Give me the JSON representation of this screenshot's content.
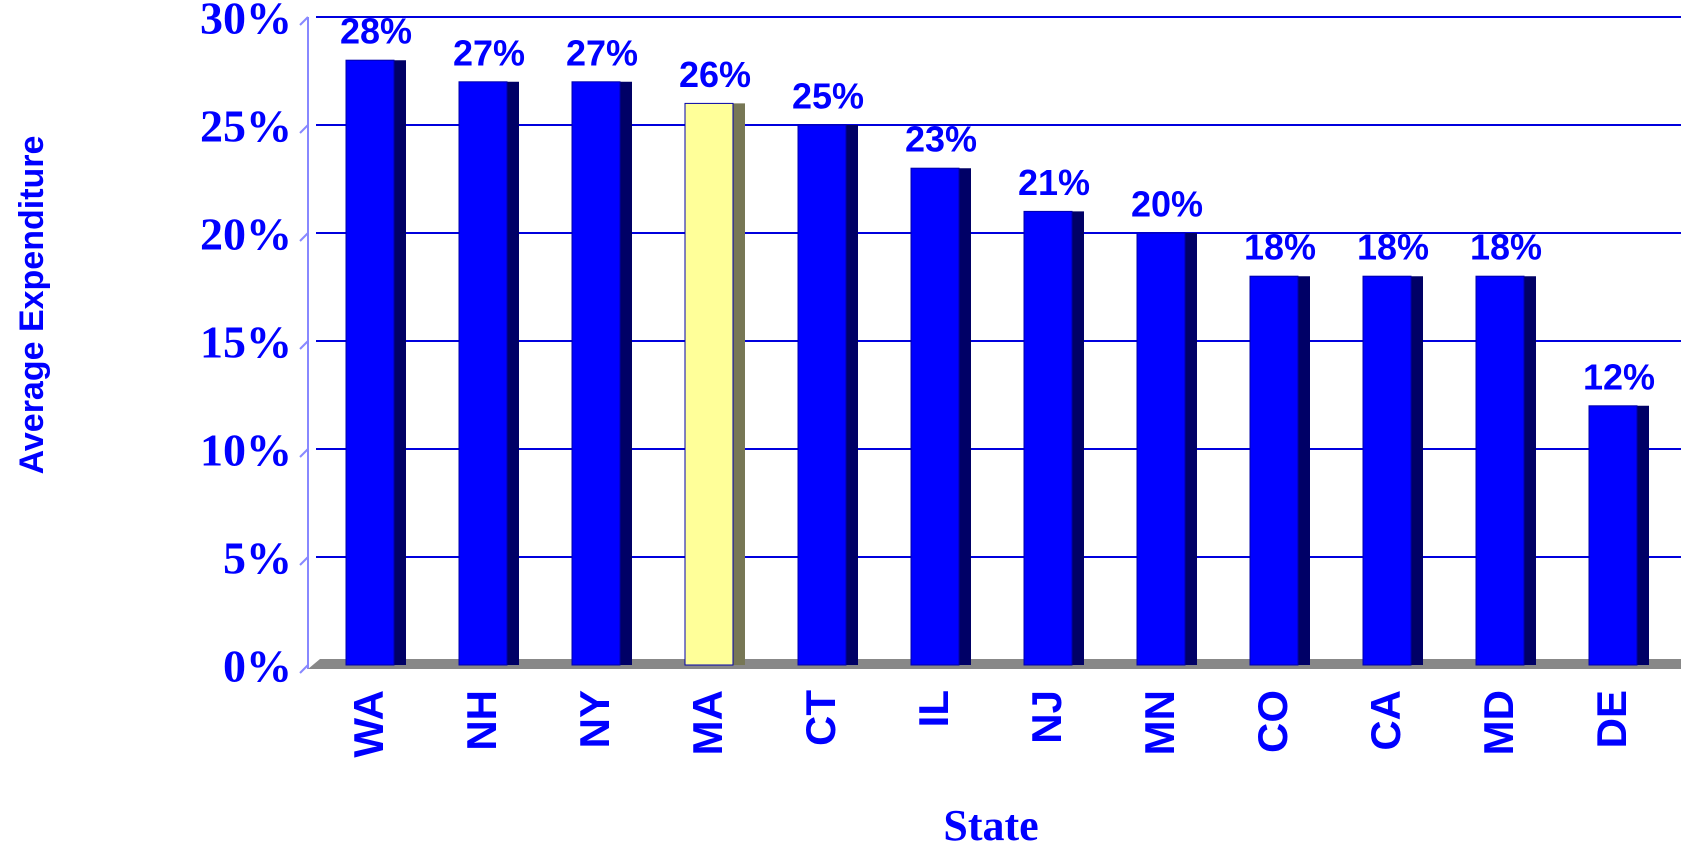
{
  "chart_data": {
    "type": "bar",
    "x_label": "State",
    "y_label": "Average Expenditure",
    "categories": [
      "WA",
      "NH",
      "NY",
      "MA",
      "CT",
      "IL",
      "NJ",
      "MN",
      "CO",
      "CA",
      "MD",
      "DE"
    ],
    "values": [
      28,
      27,
      27,
      26,
      25,
      23,
      21,
      20,
      18,
      18,
      18,
      12
    ],
    "value_labels": [
      "28%",
      "27%",
      "27%",
      "26%",
      "25%",
      "23%",
      "21%",
      "20%",
      "18%",
      "18%",
      "18%",
      "12%"
    ],
    "colors": [
      "#0000ff",
      "#0000ff",
      "#0000ff",
      "#ffff99",
      "#0000ff",
      "#0000ff",
      "#0000ff",
      "#0000ff",
      "#0000ff",
      "#0000ff",
      "#0000ff",
      "#0000ff"
    ],
    "ylim": [
      0,
      30
    ],
    "yticks": [
      {
        "value": 0,
        "label": "0%"
      },
      {
        "value": 5,
        "label": "5%"
      },
      {
        "value": 10,
        "label": "10%"
      },
      {
        "value": 15,
        "label": "15%"
      },
      {
        "value": 20,
        "label": "20%"
      },
      {
        "value": 25,
        "label": "25%"
      },
      {
        "value": 30,
        "label": "30%"
      }
    ],
    "grid": true
  }
}
